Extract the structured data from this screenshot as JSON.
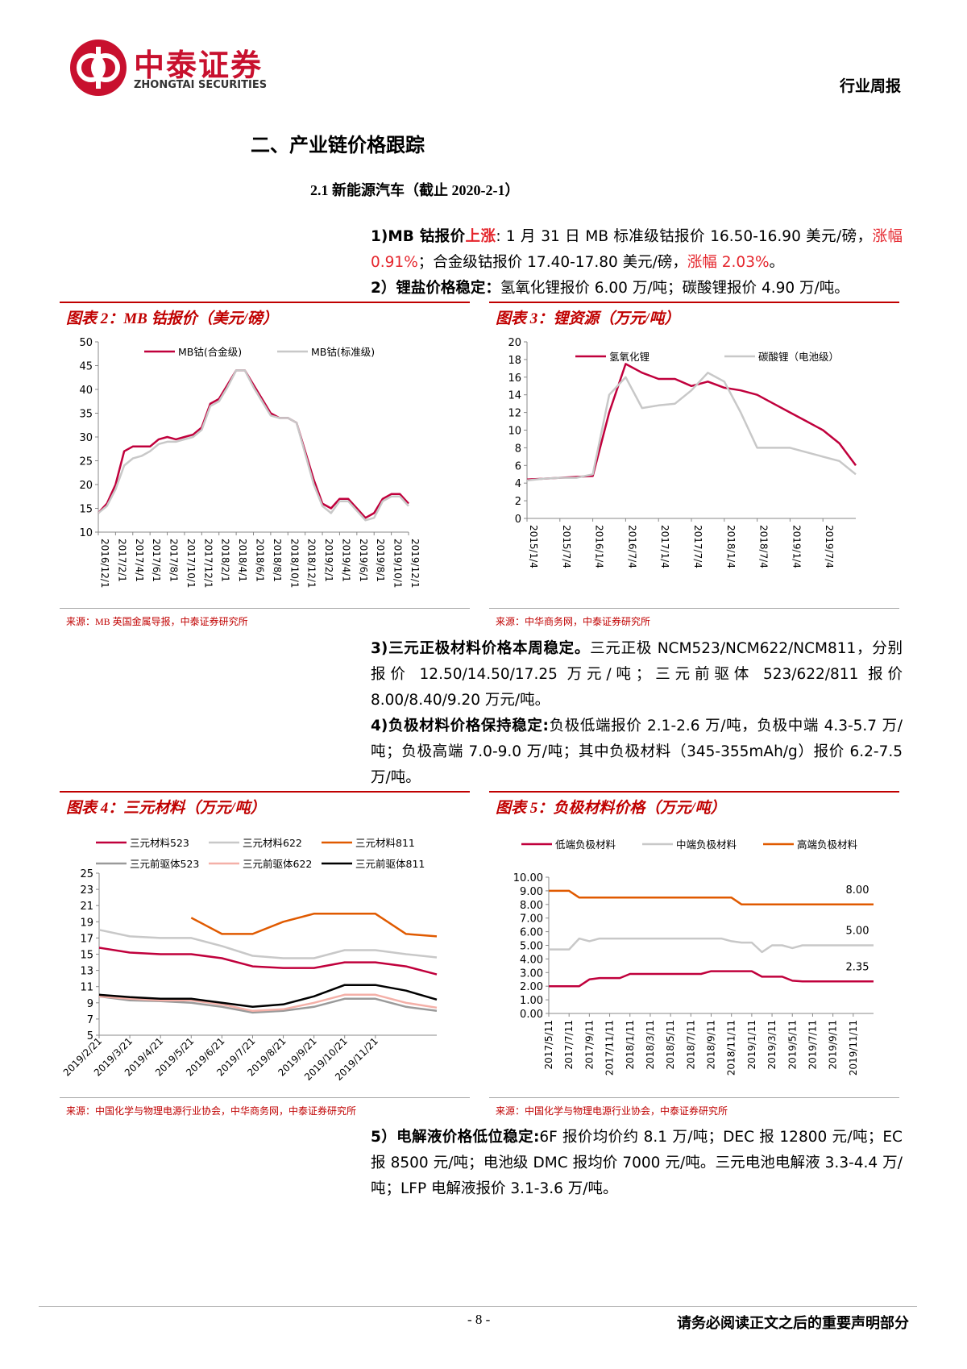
{
  "header": {
    "company": "中泰证券",
    "company_en": "ZHONGTAI SECURITIES",
    "report_type": "行业周报"
  },
  "section_title": "二、产业链价格跟踪",
  "subsection_title": "2.1 新能源汽车（截止 2020-2-1）",
  "paragraphs": [
    [
      {
        "text": "1)MB 钴报价",
        "style": "bold"
      },
      {
        "text": "上涨",
        "style": "red-bold"
      },
      {
        "text": ": 1 月 31 日 MB 标准级钴报价 16.50-16.90 美元/磅，",
        "style": "plain"
      },
      {
        "text": "涨幅 0.91%",
        "style": "red"
      },
      {
        "text": "；合金级钴报价 17.40-17.80 美元/磅，",
        "style": "plain"
      },
      {
        "text": "涨幅 2.03%",
        "style": "red"
      },
      {
        "text": "。",
        "style": "plain"
      }
    ],
    [
      {
        "text": "2）锂盐价格稳定：",
        "style": "bold"
      },
      {
        "text": "氢氧化锂报价 6.00 万/吨；碳酸锂报价 4.90 万/吨。",
        "style": "plain"
      }
    ],
    [
      {
        "text": "3)三元正极材料价格本周稳定。",
        "style": "bold"
      },
      {
        "text": "三元正极 NCM523/NCM622/NCM811，分别报价 12.50/14.50/17.25 万元/吨；三元前驱体 523/622/811 报价 8.00/8.40/9.20 万元/吨。",
        "style": "plain"
      }
    ],
    [
      {
        "text": "4)负极材料价格保持稳定:",
        "style": "bold"
      },
      {
        "text": "负极低端报价 2.1-2.6 万/吨，负极中端 4.3-5.7 万/吨；负极高端 7.0-9.0 万/吨；其中负极材料（345-355mAh/g）报价 6.2-7.5 万/吨。",
        "style": "plain"
      }
    ],
    [
      {
        "text": "5）电解液价格低位稳定:",
        "style": "bold"
      },
      {
        "text": "6F 报价均价约 8.1 万/吨；DEC 报 12800 元/吨；EC 报 8500 元/吨；电池级 DMC 报均价 7000 元/吨。三元电池电解液 3.3-4.4 万/吨；LFP 电解液报价 3.1-3.6 万/吨。",
        "style": "plain"
      }
    ]
  ],
  "chart_data": [
    {
      "type": "line",
      "title": "图表 2：MB 钴报价（美元/磅）",
      "source": "来源：MB 英国金属导报，中泰证券研究所",
      "categories": [
        "2016/12/1",
        null,
        "2017/2/1",
        null,
        "2017/4/1",
        null,
        "2017/6/1",
        null,
        "2017/8/1",
        null,
        "2017/10/1",
        null,
        "2017/12/1",
        null,
        "2018/2/1",
        null,
        "2018/4/1",
        null,
        "2018/6/1",
        null,
        "2018/8/1",
        null,
        "2018/10/1",
        null,
        "2018/12/1",
        null,
        "2019/2/1",
        null,
        "2019/4/1",
        null,
        "2019/6/1",
        null,
        "2019/8/1",
        null,
        "2019/10/1",
        null,
        "2019/12/1"
      ],
      "series": [
        {
          "name": "MB钴(合金级)",
          "color": "#c0003c",
          "values": [
            14,
            16,
            20,
            27,
            28,
            28,
            28,
            29.5,
            30,
            29.5,
            30,
            30.5,
            32,
            37,
            38,
            41,
            44,
            44,
            41,
            38,
            35,
            34,
            34,
            33,
            27,
            21,
            16,
            15,
            17,
            17,
            15,
            13,
            14,
            17,
            18,
            18,
            16
          ]
        },
        {
          "name": "MB钴(标准级)",
          "color": "#c8c8c8",
          "values": [
            14,
            15.5,
            19,
            24,
            25.5,
            26,
            27,
            28.5,
            29,
            29,
            29.5,
            30,
            31.5,
            36.5,
            37.5,
            40.5,
            44,
            44,
            40.5,
            37.5,
            34.5,
            34,
            34,
            33,
            26.5,
            20,
            15.5,
            14,
            16.5,
            16.5,
            14.5,
            12.5,
            13,
            16.5,
            17.5,
            17.5,
            15.5
          ]
        }
      ],
      "ylim": [
        10,
        50
      ],
      "yticks": [
        10,
        15,
        20,
        25,
        30,
        35,
        40,
        45,
        50
      ],
      "legend": "top",
      "grid": false
    },
    {
      "type": "line",
      "title": "图表 3：锂资源（万元/吨）",
      "source": "来源：中华商务网，中泰证券研究所",
      "categories": [
        "2015/1/4",
        null,
        "2015/7/4",
        null,
        "2016/1/4",
        null,
        "2016/7/4",
        null,
        "2017/1/4",
        null,
        "2017/7/4",
        null,
        "2018/1/4",
        null,
        "2018/7/4",
        null,
        "2019/1/4",
        null,
        "2019/7/4",
        null,
        null
      ],
      "series": [
        {
          "name": "氢氧化锂",
          "color": "#c0003c",
          "values": [
            4.4,
            4.5,
            4.6,
            4.7,
            4.8,
            12,
            17.5,
            16.5,
            15.8,
            15.8,
            15,
            15.5,
            14.8,
            14.5,
            14,
            13,
            12,
            11,
            10,
            8.5,
            6
          ]
        },
        {
          "name": "碳酸锂（电池级）",
          "color": "#c8c8c8",
          "values": [
            4.3,
            4.5,
            4.6,
            4.6,
            5,
            14,
            16,
            12.5,
            12.8,
            13,
            14.5,
            16.5,
            15.5,
            12,
            8,
            8,
            8,
            7.5,
            7,
            6.5,
            5
          ]
        }
      ],
      "ylim": [
        0,
        20
      ],
      "yticks": [
        0,
        2,
        4,
        6,
        8,
        10,
        12,
        14,
        16,
        18,
        20
      ],
      "legend": "top",
      "grid": false
    },
    {
      "type": "line",
      "title": "图表 4：三元材料（万元/吨）",
      "source": "来源：中国化学与物理电源行业协会，中华商务网，中泰证券研究所",
      "categories": [
        "2019/2/21",
        "2019/3/21",
        "2019/4/21",
        "2019/5/21",
        "2019/6/21",
        "2019/7/21",
        "2019/8/21",
        "2019/9/21",
        "2019/10/21",
        "2019/11/21",
        null,
        null
      ],
      "series": [
        {
          "name": "三元材料523",
          "color": "#c0003c",
          "values": [
            15.8,
            15.2,
            15,
            15,
            14.5,
            13.5,
            13.3,
            13.3,
            14,
            14,
            13.5,
            12.5
          ]
        },
        {
          "name": "三元材料622",
          "color": "#c8c8c8",
          "values": [
            18,
            17.2,
            17,
            17,
            16,
            14.8,
            14.5,
            14.5,
            15.5,
            15.5,
            15,
            14.6
          ]
        },
        {
          "name": "三元材料811",
          "color": "#e05a00",
          "values": [
            null,
            null,
            null,
            19.5,
            17.5,
            17.5,
            19,
            20,
            20,
            20,
            17.5,
            17.2
          ]
        },
        {
          "name": "三元前驱体523",
          "color": "#9a9a9a",
          "values": [
            9.8,
            9.3,
            9.2,
            9,
            8.5,
            7.8,
            8,
            8.5,
            9.5,
            9.5,
            8.5,
            8
          ]
        },
        {
          "name": "三元前驱体622",
          "color": "#f4b0a8",
          "values": [
            9.8,
            9.5,
            9.3,
            9.3,
            8.8,
            8,
            8.2,
            9,
            10,
            10,
            9,
            8.4
          ]
        },
        {
          "name": "三元前驱体811",
          "color": "#000000",
          "values": [
            10,
            9.7,
            9.5,
            9.5,
            9,
            8.5,
            8.8,
            9.8,
            11.2,
            11.2,
            10.5,
            9.4
          ]
        }
      ],
      "ylim": [
        5,
        25
      ],
      "yticks": [
        5,
        7,
        9,
        11,
        13,
        15,
        17,
        19,
        21,
        23,
        25
      ],
      "legend": "top",
      "grid": false
    },
    {
      "type": "line",
      "title": "图表 5：负极材料价格（万元/吨）",
      "source": "来源：中国化学与物理电源行业协会，中泰证券研究所",
      "categories": [
        "2017/5/11",
        null,
        "2017/7/11",
        null,
        "2017/9/11",
        null,
        "2017/11/11",
        null,
        "2018/1/11",
        null,
        "2018/3/11",
        null,
        "2018/5/11",
        null,
        "2018/7/11",
        null,
        "2018/9/11",
        null,
        "2018/11/11",
        null,
        "2019/1/11",
        null,
        "2019/3/11",
        null,
        "2019/5/11",
        null,
        "2019/7/11",
        null,
        "2019/9/11",
        null,
        "2019/11/11",
        null,
        null
      ],
      "series": [
        {
          "name": "低端负极材料",
          "color": "#c0003c",
          "values": [
            2,
            2,
            2,
            2,
            2.5,
            2.6,
            2.6,
            2.6,
            2.9,
            2.9,
            2.9,
            2.9,
            2.9,
            2.9,
            2.9,
            2.9,
            3.1,
            3.1,
            3.1,
            3.1,
            3.1,
            2.7,
            2.7,
            2.7,
            2.4,
            2.35,
            2.35,
            2.35,
            2.35,
            2.35,
            2.35,
            2.35,
            2.35
          ],
          "value_labels": [
            null,
            null,
            null,
            null,
            null,
            null,
            null,
            null,
            null,
            null,
            null,
            null,
            null,
            null,
            null,
            null,
            null,
            null,
            null,
            null,
            null,
            null,
            null,
            null,
            null,
            null,
            null,
            null,
            null,
            null,
            null,
            null,
            "2.35"
          ]
        },
        {
          "name": "中端负极材料",
          "color": "#c8c8c8",
          "values": [
            4.7,
            4.7,
            4.7,
            5.5,
            5.3,
            5.5,
            5.5,
            5.5,
            5.5,
            5.5,
            5.5,
            5.5,
            5.5,
            5.5,
            5.5,
            5.5,
            5.5,
            5.5,
            5.3,
            5.2,
            5.2,
            4.5,
            5,
            5,
            4.8,
            5,
            5,
            5,
            5,
            5,
            5,
            5,
            5
          ],
          "value_labels": [
            null,
            null,
            null,
            null,
            null,
            null,
            null,
            null,
            null,
            null,
            null,
            null,
            null,
            null,
            null,
            null,
            null,
            null,
            null,
            null,
            null,
            null,
            null,
            null,
            null,
            null,
            null,
            null,
            null,
            null,
            null,
            null,
            "5.00"
          ]
        },
        {
          "name": "高端负极材料",
          "color": "#e05a00",
          "values": [
            9,
            9,
            9,
            8.5,
            8.5,
            8.5,
            8.5,
            8.5,
            8.5,
            8.5,
            8.5,
            8.5,
            8.5,
            8.5,
            8.5,
            8.5,
            8.5,
            8.5,
            8.5,
            8,
            8,
            8,
            8,
            8,
            8,
            8,
            8,
            8,
            8,
            8,
            8,
            8,
            8
          ],
          "value_labels": [
            null,
            null,
            null,
            null,
            null,
            null,
            null,
            null,
            null,
            null,
            null,
            null,
            null,
            null,
            null,
            null,
            null,
            null,
            null,
            null,
            null,
            null,
            null,
            null,
            null,
            null,
            null,
            null,
            null,
            null,
            null,
            null,
            "8.00"
          ]
        }
      ],
      "ylim": [
        0,
        10
      ],
      "yticks": [
        {
          "value": 0,
          "label": "0.00"
        },
        {
          "value": 1,
          "label": "1.00"
        },
        {
          "value": 2,
          "label": "2.00"
        },
        {
          "value": 3,
          "label": "3.00"
        },
        {
          "value": 4,
          "label": "4.00"
        },
        {
          "value": 5,
          "label": "5.00"
        },
        {
          "value": 6,
          "label": "6.00"
        },
        {
          "value": 7,
          "label": "7.00"
        },
        {
          "value": 8,
          "label": "8.00"
        },
        {
          "value": 9,
          "label": "9.00"
        },
        {
          "value": 10,
          "label": "10.00"
        }
      ],
      "legend": "top",
      "grid": false
    }
  ],
  "footer": {
    "page": "- 8 -",
    "notice": "请务必阅读正文之后的重要声明部分"
  }
}
